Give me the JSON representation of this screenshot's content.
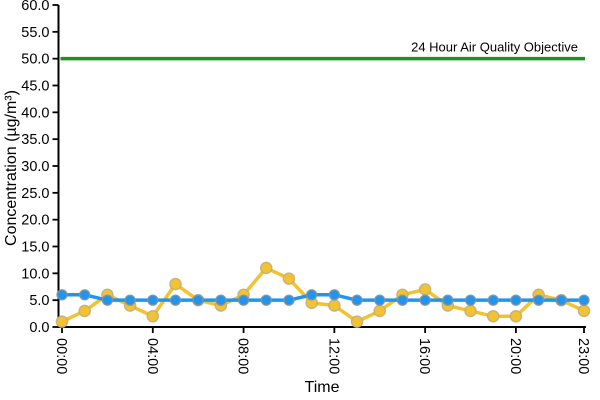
{
  "chart_data": {
    "type": "line",
    "x": [
      "00:00",
      "01:00",
      "02:00",
      "03:00",
      "04:00",
      "05:00",
      "06:00",
      "07:00",
      "08:00",
      "09:00",
      "10:00",
      "11:00",
      "12:00",
      "13:00",
      "14:00",
      "15:00",
      "16:00",
      "17:00",
      "18:00",
      "19:00",
      "20:00",
      "21:00",
      "22:00",
      "23:00"
    ],
    "series": [
      {
        "name": "yellow-series",
        "color": "#F2C230",
        "marker_outline": "#BCAE85",
        "values": [
          1,
          3,
          6,
          4,
          2,
          8,
          5,
          4,
          6,
          11,
          9,
          4.5,
          4,
          1,
          3,
          6,
          7,
          4,
          3,
          2,
          2,
          6,
          5,
          3
        ]
      },
      {
        "name": "blue-series",
        "color": "#1E96F0",
        "marker_outline": "#8A9096",
        "values": [
          6,
          6,
          5,
          5,
          5,
          5,
          5,
          5,
          5,
          5,
          5,
          6,
          6,
          5,
          5,
          5,
          5,
          5,
          5,
          5,
          5,
          5,
          5,
          5
        ]
      }
    ],
    "objective": {
      "label": "24 Hour Air Quality Objective",
      "value": 50,
      "color": "#1B941B"
    },
    "xlabel": "Time",
    "ylabel": "Concentration (µg/m³)",
    "ylim": [
      0,
      60
    ],
    "ytick_step": 5,
    "ytick_format_decimals": 1,
    "xtick_labeled_indices": [
      0,
      4,
      8,
      12,
      16,
      20,
      23
    ],
    "grid": "off",
    "legend": "none",
    "axis_color": "#000000"
  }
}
